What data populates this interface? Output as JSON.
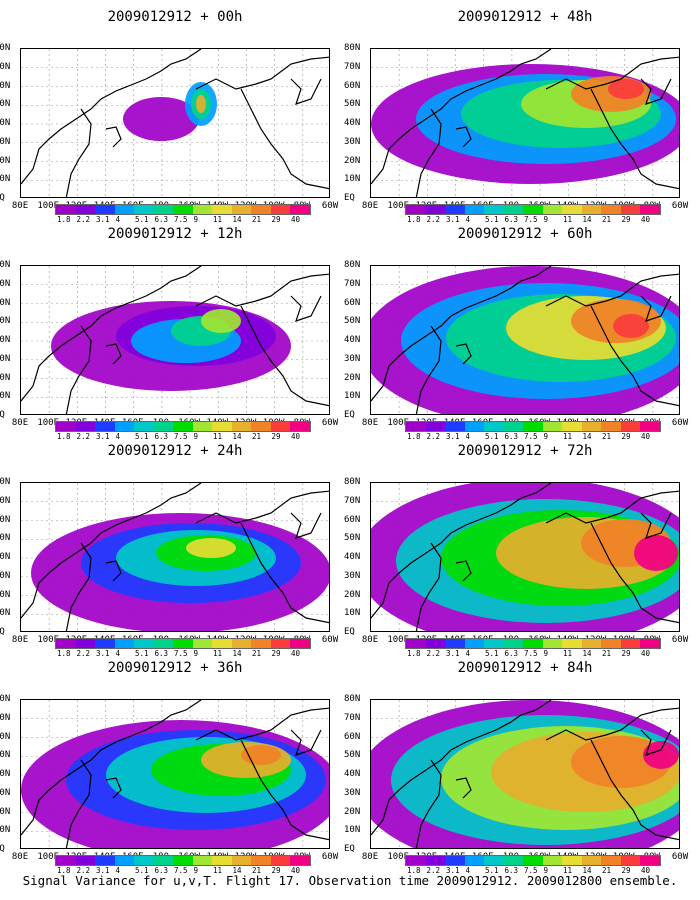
{
  "panels": [
    {
      "title": "2009012912 + 00h",
      "intensity": 0
    },
    {
      "title": "2009012912 + 48h",
      "intensity": 4
    },
    {
      "title": "2009012912 + 12h",
      "intensity": 1
    },
    {
      "title": "2009012912 + 60h",
      "intensity": 5
    },
    {
      "title": "2009012912 + 24h",
      "intensity": 2
    },
    {
      "title": "2009012912 + 72h",
      "intensity": 6
    },
    {
      "title": "2009012912 + 36h",
      "intensity": 3
    },
    {
      "title": "2009012912 + 84h",
      "intensity": 7
    }
  ],
  "lat_labels": [
    "80N",
    "70N",
    "60N",
    "50N",
    "40N",
    "30N",
    "20N",
    "10N",
    "EQ"
  ],
  "lon_labels": [
    "80E",
    "100E",
    "120E",
    "140E",
    "160E",
    "180",
    "160W",
    "140W",
    "120W",
    "100W",
    "80W",
    "60W"
  ],
  "colorbar": {
    "labels": [
      "1.8",
      "2.2",
      "3.1",
      "4",
      "5.1",
      "6.3",
      "7.5",
      "9",
      "11",
      "14",
      "21",
      "29",
      "40"
    ],
    "colors": [
      "#a000c8",
      "#8200dc",
      "#1e3cff",
      "#00a0ff",
      "#00c8c8",
      "#00d28c",
      "#00dc00",
      "#a0e632",
      "#e6dc32",
      "#e6af2d",
      "#f08228",
      "#fa3c3c",
      "#f00082"
    ]
  },
  "footer": "Signal Variance for u,v,T. Flight 17. Observation time 2009012912. 2009012800 ensemble."
}
